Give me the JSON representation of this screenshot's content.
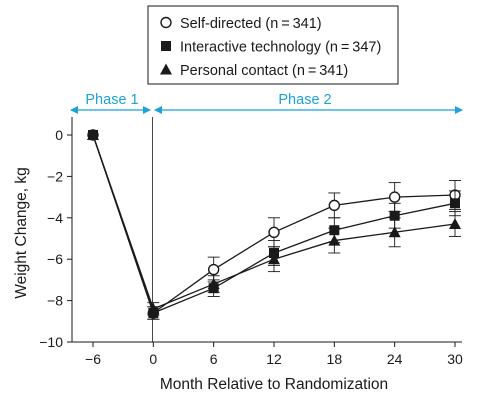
{
  "chart_data": {
    "type": "line",
    "xlabel": "Month Relative to Randomization",
    "ylabel": "Weight Change, kg",
    "xlim": [
      -6,
      30
    ],
    "ylim": [
      -10,
      0
    ],
    "xticks": [
      -6,
      0,
      6,
      12,
      18,
      24,
      30
    ],
    "yticks": [
      0,
      -2,
      -4,
      -6,
      -8,
      -10
    ],
    "x_tick_labels": [
      "−6",
      "0",
      "6",
      "12",
      "18",
      "24",
      "30"
    ],
    "y_tick_labels": [
      "0",
      "−2",
      "−4",
      "−6",
      "−8",
      "−10"
    ],
    "grid": false,
    "legend_position": "top-center",
    "phases": [
      {
        "label": "Phase 1",
        "from": -6,
        "to": 0
      },
      {
        "label": "Phase 2",
        "from": 0,
        "to": 30
      }
    ],
    "phase_color": "#1ba3d6",
    "x": [
      -6,
      0,
      6,
      12,
      18,
      24,
      30
    ],
    "series": [
      {
        "name": "Self-directed (n = 341)",
        "marker": "open-circle",
        "values": [
          0,
          -8.6,
          -6.5,
          -4.7,
          -3.4,
          -3.0,
          -2.9
        ],
        "error": [
          0,
          0.3,
          0.6,
          0.7,
          0.6,
          0.7,
          0.7
        ]
      },
      {
        "name": "Interactive technology (n = 347)",
        "marker": "filled-square",
        "values": [
          0,
          -8.6,
          -7.4,
          -5.7,
          -4.6,
          -3.9,
          -3.3
        ],
        "error": [
          0,
          0.3,
          0.4,
          0.6,
          0.6,
          0.6,
          0.6
        ]
      },
      {
        "name": "Personal contact (n = 341)",
        "marker": "filled-triangle",
        "values": [
          0,
          -8.4,
          -7.2,
          -6.0,
          -5.1,
          -4.7,
          -4.3
        ],
        "error": [
          0,
          0.3,
          0.4,
          0.6,
          0.6,
          0.7,
          0.6
        ]
      }
    ]
  }
}
